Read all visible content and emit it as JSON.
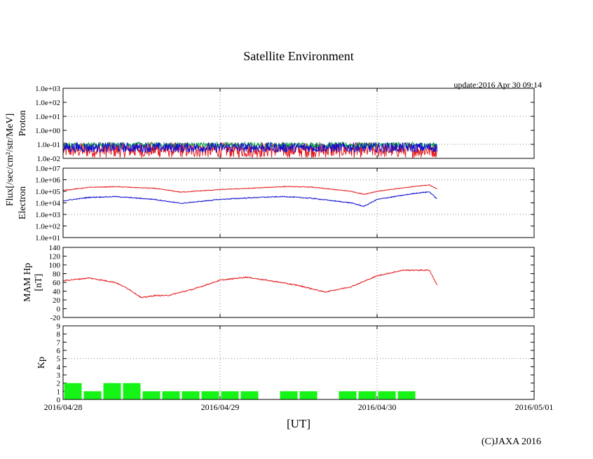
{
  "chart_data": {
    "type": "line",
    "title": "Satellite Environment",
    "update_text": "update:2016 Apr 30 09:14",
    "copyright": "(C)JAXA 2016",
    "xlabel": "[UT]",
    "x_range": [
      "2016-04-28",
      "2016-05-01"
    ],
    "x_ticks": [
      "2016/04/28",
      "2016/04/29",
      "2016/04/30",
      "2016/05/01"
    ],
    "flux_label": "Flux[/sec/cm²/str/MeV]",
    "colors": {
      "red": "#e41a1c",
      "blue": "#1010d0",
      "green": "#16a34a",
      "kp": "#16f316"
    },
    "panels": [
      {
        "id": "proton",
        "ylabel": "Proton",
        "scale": "log",
        "ylim": [
          0.01,
          1000
        ],
        "y_ticks": [
          "1.0e-02",
          "1.0e-01",
          "1.0e+00",
          "1.0e+01",
          "1.0e+02",
          "1.0e+03"
        ],
        "series": [
          {
            "color": "red",
            "noise": 0.55,
            "points": [
              [
                "2016-04-28T00:00",
                0.04
              ],
              [
                "2016-04-29T00:00",
                0.04
              ],
              [
                "2016-04-30T00:00",
                0.04
              ],
              [
                "2016-04-30T09:14",
                0.04
              ]
            ]
          },
          {
            "color": "green",
            "noise": 0.2,
            "points": [
              [
                "2016-04-28T00:00",
                0.09
              ],
              [
                "2016-04-29T00:00",
                0.09
              ],
              [
                "2016-04-30T00:00",
                0.09
              ],
              [
                "2016-04-30T09:14",
                0.09
              ]
            ]
          },
          {
            "color": "blue",
            "noise": 0.35,
            "points": [
              [
                "2016-04-28T00:00",
                0.06
              ],
              [
                "2016-04-29T00:00",
                0.06
              ],
              [
                "2016-04-30T00:00",
                0.06
              ],
              [
                "2016-04-30T09:14",
                0.06
              ]
            ]
          }
        ]
      },
      {
        "id": "electron",
        "ylabel": "Electron",
        "scale": "log",
        "ylim": [
          10,
          10000000
        ],
        "y_ticks": [
          "1.0e+01",
          "1.0e+02",
          "1.0e+03",
          "1.0e+04",
          "1.0e+05",
          "1.0e+06",
          "1.0e+07"
        ],
        "series": [
          {
            "color": "red",
            "noise": 0.03,
            "points": [
              [
                "2016-04-28T00:00",
                120000
              ],
              [
                "2016-04-28T04:00",
                220000
              ],
              [
                "2016-04-28T08:00",
                250000
              ],
              [
                "2016-04-28T14:00",
                180000
              ],
              [
                "2016-04-28T18:00",
                85000
              ],
              [
                "2016-04-29T00:00",
                140000
              ],
              [
                "2016-04-29T06:00",
                200000
              ],
              [
                "2016-04-29T10:00",
                260000
              ],
              [
                "2016-04-29T14:00",
                230000
              ],
              [
                "2016-04-29T20:00",
                100000
              ],
              [
                "2016-04-29T22:00",
                55000
              ],
              [
                "2016-04-30T00:00",
                100000
              ],
              [
                "2016-04-30T06:00",
                280000
              ],
              [
                "2016-04-30T08:00",
                350000
              ],
              [
                "2016-04-30T09:14",
                150000
              ]
            ]
          },
          {
            "color": "blue",
            "noise": 0.04,
            "points": [
              [
                "2016-04-28T00:00",
                15000
              ],
              [
                "2016-04-28T04:00",
                30000
              ],
              [
                "2016-04-28T08:00",
                35000
              ],
              [
                "2016-04-28T14:00",
                20000
              ],
              [
                "2016-04-28T18:00",
                9000
              ],
              [
                "2016-04-29T00:00",
                20000
              ],
              [
                "2016-04-29T06:00",
                30000
              ],
              [
                "2016-04-29T10:00",
                35000
              ],
              [
                "2016-04-29T14:00",
                25000
              ],
              [
                "2016-04-29T20:00",
                10000
              ],
              [
                "2016-04-29T22:00",
                5000
              ],
              [
                "2016-04-30T00:00",
                20000
              ],
              [
                "2016-04-30T06:00",
                70000
              ],
              [
                "2016-04-30T08:00",
                90000
              ],
              [
                "2016-04-30T09:14",
                20000
              ]
            ]
          }
        ]
      },
      {
        "id": "mam",
        "ylabel": "MAM Hp",
        "ylabel2": "[nT]",
        "scale": "linear",
        "ylim": [
          -20,
          140
        ],
        "y_ticks": [
          "-20",
          "0",
          "20",
          "40",
          "60",
          "80",
          "100",
          "120",
          "140"
        ],
        "series": [
          {
            "color": "red",
            "noise": 1.2,
            "points": [
              [
                "2016-04-28T00:00",
                64
              ],
              [
                "2016-04-28T04:00",
                70
              ],
              [
                "2016-04-28T08:00",
                60
              ],
              [
                "2016-04-28T10:00",
                45
              ],
              [
                "2016-04-28T12:00",
                25
              ],
              [
                "2016-04-28T14:00",
                30
              ],
              [
                "2016-04-28T16:00",
                30
              ],
              [
                "2016-04-28T20:00",
                45
              ],
              [
                "2016-04-29T00:00",
                65
              ],
              [
                "2016-04-29T04:00",
                72
              ],
              [
                "2016-04-29T08:00",
                63
              ],
              [
                "2016-04-29T12:00",
                53
              ],
              [
                "2016-04-29T16:00",
                38
              ],
              [
                "2016-04-29T20:00",
                50
              ],
              [
                "2016-04-30T00:00",
                75
              ],
              [
                "2016-04-30T04:00",
                88
              ],
              [
                "2016-04-30T08:00",
                88
              ],
              [
                "2016-04-30T09:14",
                52
              ]
            ]
          }
        ]
      },
      {
        "id": "kp",
        "ylabel": "Kp",
        "scale": "linear",
        "ylim": [
          0,
          9
        ],
        "y_ticks": [
          "0",
          "1",
          "2",
          "3",
          "4",
          "5",
          "6",
          "7",
          "8",
          "9"
        ],
        "type": "bar",
        "bars": [
          {
            "start": "2016-04-28T00:00",
            "value": 2
          },
          {
            "start": "2016-04-28T03:00",
            "value": 1
          },
          {
            "start": "2016-04-28T06:00",
            "value": 2
          },
          {
            "start": "2016-04-28T09:00",
            "value": 2
          },
          {
            "start": "2016-04-28T12:00",
            "value": 1
          },
          {
            "start": "2016-04-28T15:00",
            "value": 1
          },
          {
            "start": "2016-04-28T18:00",
            "value": 1
          },
          {
            "start": "2016-04-28T21:00",
            "value": 1
          },
          {
            "start": "2016-04-29T00:00",
            "value": 1
          },
          {
            "start": "2016-04-29T03:00",
            "value": 1
          },
          {
            "start": "2016-04-29T09:00",
            "value": 1
          },
          {
            "start": "2016-04-29T12:00",
            "value": 1
          },
          {
            "start": "2016-04-29T18:00",
            "value": 1
          },
          {
            "start": "2016-04-29T21:00",
            "value": 1
          },
          {
            "start": "2016-04-30T00:00",
            "value": 1
          },
          {
            "start": "2016-04-30T03:00",
            "value": 1
          }
        ]
      }
    ]
  }
}
